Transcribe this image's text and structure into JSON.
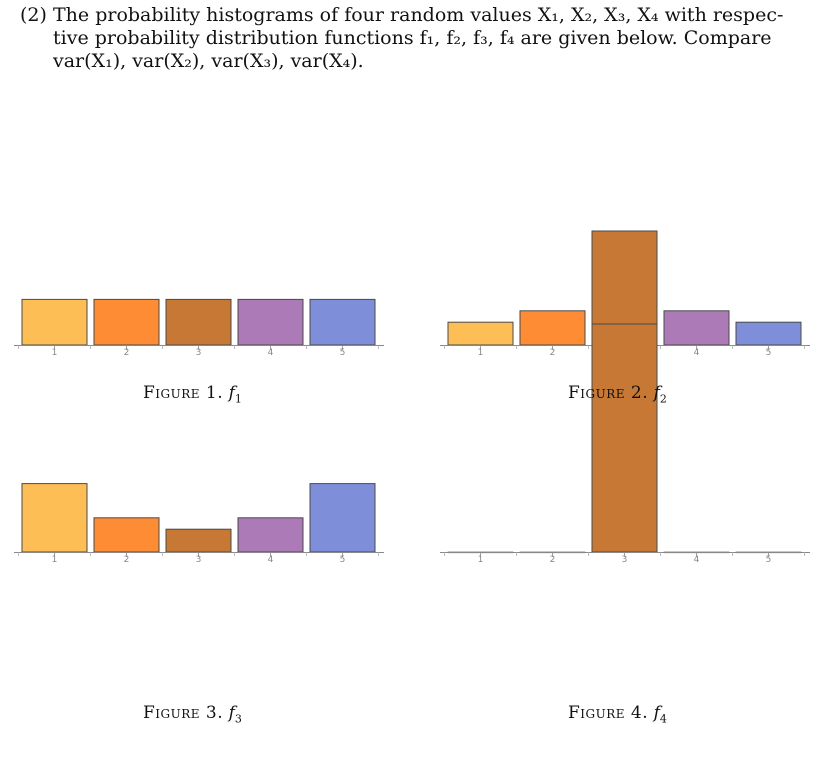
{
  "problem": {
    "number": "(2)",
    "lines": [
      "The probability histograms of four random values X₁, X₂, X₃, X₄ with respec-",
      "tive probability distribution functions f₁, f₂, f₃, f₄ are given below. Compare",
      "var(X₁), var(X₂), var(X₃), var(X₄)."
    ]
  },
  "colors": [
    "#fdbe55",
    "#fd8c34",
    "#c77834",
    "#ad7ab8",
    "#7e8ed8"
  ],
  "figures": [
    {
      "caption_label": "Figure 1.",
      "caption_func": "f",
      "caption_sub": "1",
      "chart_data": {
        "type": "bar",
        "categories": [
          "1",
          "2",
          "3",
          "4",
          "5"
        ],
        "values": [
          0.2,
          0.2,
          0.2,
          0.2,
          0.2
        ],
        "ylim": [
          0,
          1
        ]
      }
    },
    {
      "caption_label": "Figure 2.",
      "caption_func": "f",
      "caption_sub": "2",
      "chart_data": {
        "type": "bar",
        "categories": [
          "1",
          "2",
          "3",
          "4",
          "5"
        ],
        "values": [
          0.1,
          0.15,
          0.5,
          0.15,
          0.1
        ],
        "ylim": [
          0,
          1
        ]
      }
    },
    {
      "caption_label": "Figure 3.",
      "caption_func": "f",
      "caption_sub": "3",
      "chart_data": {
        "type": "bar",
        "categories": [
          "1",
          "2",
          "3",
          "4",
          "5"
        ],
        "values": [
          0.3,
          0.15,
          0.1,
          0.15,
          0.3
        ],
        "ylim": [
          0,
          1
        ]
      }
    },
    {
      "caption_label": "Figure 4.",
      "caption_func": "f",
      "caption_sub": "4",
      "chart_data": {
        "type": "bar",
        "categories": [
          "1",
          "2",
          "3",
          "4",
          "5"
        ],
        "values": [
          0,
          0,
          1,
          0,
          0
        ],
        "ylim": [
          0,
          1
        ]
      }
    }
  ]
}
